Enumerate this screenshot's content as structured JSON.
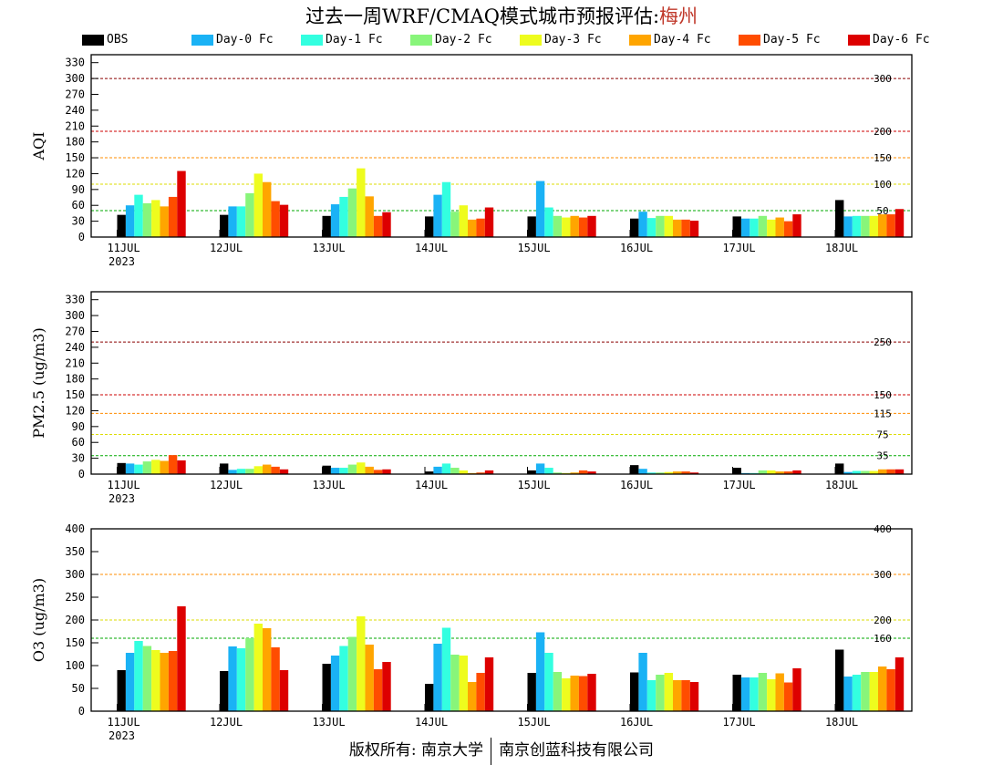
{
  "header": {
    "title_prefix": "过去一周WRF/CMAQ模式城市预报评估:",
    "city": "梅州",
    "city_color": "#c0392b"
  },
  "legend": [
    {
      "label": "OBS",
      "color": "#000000"
    },
    {
      "label": "Day-0 Fc",
      "color": "#1ab2f5"
    },
    {
      "label": "Day-1 Fc",
      "color": "#33ffe0"
    },
    {
      "label": "Day-2 Fc",
      "color": "#88f57a"
    },
    {
      "label": "Day-3 Fc",
      "color": "#eefc1e"
    },
    {
      "label": "Day-4 Fc",
      "color": "#ffa500"
    },
    {
      "label": "Day-5 Fc",
      "color": "#ff4d00"
    },
    {
      "label": "Day-6 Fc",
      "color": "#dd0000"
    }
  ],
  "footer": {
    "left": "版权所有: 南京大学",
    "right": "南京创蓝科技有限公司"
  },
  "chart_data": [
    {
      "type": "bar",
      "ylabel": "AQI",
      "ylim": [
        0,
        345
      ],
      "yticks": [
        0,
        30,
        60,
        90,
        120,
        150,
        180,
        210,
        240,
        270,
        300,
        330
      ],
      "categories": [
        "11JUL",
        "12JUL",
        "13JUL",
        "14JUL",
        "15JUL",
        "16JUL",
        "17JUL",
        "18JUL"
      ],
      "first_category_sublabel": "2023",
      "reference_lines": [
        {
          "value": 50,
          "label": "50",
          "color": "#00aa00"
        },
        {
          "value": 100,
          "label": "100",
          "color": "#dddd00"
        },
        {
          "value": 150,
          "label": "150",
          "color": "#ff8c00"
        },
        {
          "value": 200,
          "label": "200",
          "color": "#cc0000"
        },
        {
          "value": 300,
          "label": "300",
          "color": "#8b0000"
        }
      ],
      "series": [
        {
          "name": "OBS",
          "values": [
            42,
            42,
            40,
            39,
            39,
            35,
            39,
            70
          ]
        },
        {
          "name": "Day-0 Fc",
          "values": [
            60,
            58,
            62,
            80,
            106,
            48,
            35,
            39
          ]
        },
        {
          "name": "Day-1 Fc",
          "values": [
            80,
            58,
            76,
            104,
            56,
            36,
            35,
            40
          ]
        },
        {
          "name": "Day-2 Fc",
          "values": [
            64,
            83,
            92,
            48,
            40,
            40,
            40,
            40
          ]
        },
        {
          "name": "Day-3 Fc",
          "values": [
            70,
            120,
            130,
            60,
            37,
            40,
            33,
            40
          ]
        },
        {
          "name": "Day-4 Fc",
          "values": [
            58,
            104,
            77,
            33,
            40,
            33,
            37,
            43
          ]
        },
        {
          "name": "Day-5 Fc",
          "values": [
            76,
            68,
            40,
            35,
            37,
            33,
            30,
            43
          ]
        },
        {
          "name": "Day-6 Fc",
          "values": [
            125,
            61,
            47,
            56,
            40,
            31,
            43,
            53
          ]
        }
      ]
    },
    {
      "type": "bar",
      "ylabel": "PM2.5 (ug/m3)",
      "ylim": [
        0,
        345
      ],
      "yticks": [
        0,
        30,
        60,
        90,
        120,
        150,
        180,
        210,
        240,
        270,
        300,
        330
      ],
      "categories": [
        "11JUL",
        "12JUL",
        "13JUL",
        "14JUL",
        "15JUL",
        "16JUL",
        "17JUL",
        "18JUL"
      ],
      "first_category_sublabel": "2023",
      "reference_lines": [
        {
          "value": 35,
          "label": "35",
          "color": "#00aa00"
        },
        {
          "value": 75,
          "label": "75",
          "color": "#dddd00"
        },
        {
          "value": 115,
          "label": "115",
          "color": "#ff8c00"
        },
        {
          "value": 150,
          "label": "150",
          "color": "#cc0000"
        },
        {
          "value": 250,
          "label": "250",
          "color": "#8b0000"
        }
      ],
      "series": [
        {
          "name": "OBS",
          "values": [
            21,
            20,
            16,
            5,
            7,
            17,
            12,
            20
          ]
        },
        {
          "name": "Day-0 Fc",
          "values": [
            20,
            8,
            12,
            14,
            20,
            10,
            2,
            4
          ]
        },
        {
          "name": "Day-1 Fc",
          "values": [
            18,
            10,
            12,
            20,
            12,
            3,
            2,
            6
          ]
        },
        {
          "name": "Day-2 Fc",
          "values": [
            24,
            10,
            18,
            12,
            3,
            3,
            7,
            6
          ]
        },
        {
          "name": "Day-3 Fc",
          "values": [
            27,
            15,
            22,
            7,
            2,
            4,
            7,
            6
          ]
        },
        {
          "name": "Day-4 Fc",
          "values": [
            25,
            18,
            14,
            2,
            3,
            5,
            5,
            9
          ]
        },
        {
          "name": "Day-5 Fc",
          "values": [
            36,
            14,
            8,
            3,
            7,
            5,
            5,
            9
          ]
        },
        {
          "name": "Day-6 Fc",
          "values": [
            26,
            9,
            9,
            7,
            5,
            3,
            7,
            9
          ]
        }
      ]
    },
    {
      "type": "bar",
      "ylabel": "O3 (ug/m3)",
      "ylim": [
        0,
        400
      ],
      "yticks": [
        0,
        50,
        100,
        150,
        200,
        250,
        300,
        350,
        400
      ],
      "categories": [
        "11JUL",
        "12JUL",
        "13JUL",
        "14JUL",
        "15JUL",
        "16JUL",
        "17JUL",
        "18JUL"
      ],
      "first_category_sublabel": "2023",
      "reference_lines": [
        {
          "value": 160,
          "label": "160",
          "color": "#00aa00"
        },
        {
          "value": 200,
          "label": "200",
          "color": "#dddd00"
        },
        {
          "value": 300,
          "label": "300",
          "color": "#ff8c00"
        },
        {
          "value": 400,
          "label": "400",
          "color": "#cc0000"
        }
      ],
      "series": [
        {
          "name": "OBS",
          "values": [
            90,
            88,
            104,
            60,
            84,
            85,
            80,
            135
          ]
        },
        {
          "name": "Day-0 Fc",
          "values": [
            128,
            142,
            122,
            148,
            173,
            128,
            74,
            76
          ]
        },
        {
          "name": "Day-1 Fc",
          "values": [
            154,
            138,
            143,
            183,
            128,
            68,
            74,
            80
          ]
        },
        {
          "name": "Day-2 Fc",
          "values": [
            143,
            160,
            163,
            124,
            86,
            80,
            84,
            86
          ]
        },
        {
          "name": "Day-3 Fc",
          "values": [
            134,
            192,
            208,
            122,
            72,
            84,
            70,
            86
          ]
        },
        {
          "name": "Day-4 Fc",
          "values": [
            128,
            182,
            146,
            64,
            78,
            68,
            83,
            98
          ]
        },
        {
          "name": "Day-5 Fc",
          "values": [
            132,
            140,
            92,
            84,
            77,
            68,
            63,
            92
          ]
        },
        {
          "name": "Day-6 Fc",
          "values": [
            230,
            90,
            108,
            118,
            82,
            64,
            94,
            118
          ]
        }
      ]
    }
  ]
}
